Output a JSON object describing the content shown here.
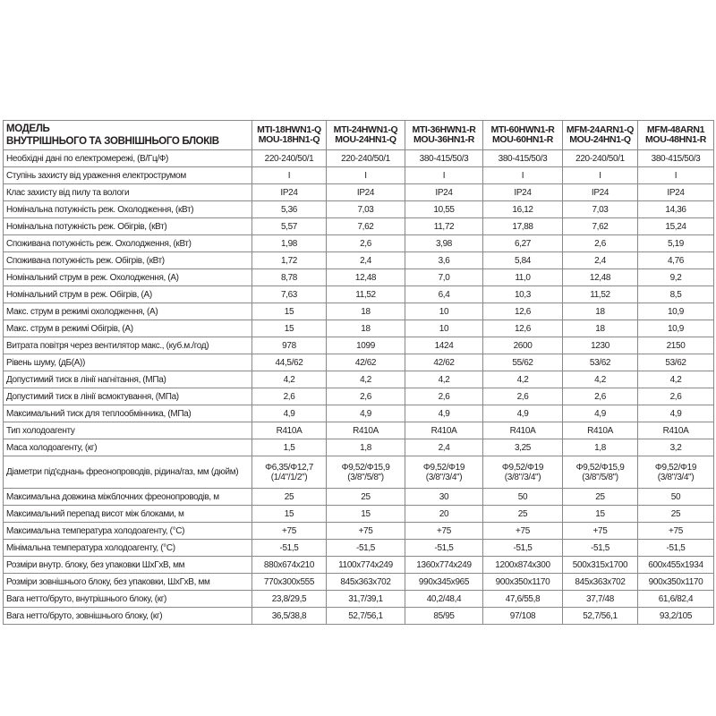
{
  "header": {
    "label_line1": "МОДЕЛЬ",
    "label_line2": "ВНУТРІШНЬОГО ТА ЗОВНІШНЬОГО БЛОКІВ",
    "models": [
      {
        "indoor": "MTI-18HWN1-Q",
        "outdoor": "MOU-18HN1-Q"
      },
      {
        "indoor": "MTI-24HWN1-Q",
        "outdoor": "MOU-24HN1-Q"
      },
      {
        "indoor": "MTI-36HWN1-R",
        "outdoor": "MOU-36HN1-R"
      },
      {
        "indoor": "MTI-60HWN1-R",
        "outdoor": "MOU-60HN1-R"
      },
      {
        "indoor": "MFM-24ARN1-Q",
        "outdoor": "MOU-24HN1-Q"
      },
      {
        "indoor": "MFM-48ARN1",
        "outdoor": "MOU-48HN1-R"
      }
    ]
  },
  "rows": [
    {
      "label": "Необхідні дані по електромережі, (В/Гц/Ф)",
      "values": [
        "220-240/50/1",
        "220-240/50/1",
        "380-415/50/3",
        "380-415/50/3",
        "220-240/50/1",
        "380-415/50/3"
      ]
    },
    {
      "label": "Ступінь захисту від ураження електрострумом",
      "values": [
        "I",
        "I",
        "I",
        "I",
        "I",
        "I"
      ]
    },
    {
      "label": "Клас захисту від пилу та вологи",
      "values": [
        "IP24",
        "IP24",
        "IP24",
        "IP24",
        "IP24",
        "IP24"
      ]
    },
    {
      "label": "Номінальна потужність реж. Охолодження, (кВт)",
      "values": [
        "5,36",
        "7,03",
        "10,55",
        "16,12",
        "7,03",
        "14,36"
      ]
    },
    {
      "label": "Номінальна потужність реж. Обігрів, (кВт)",
      "values": [
        "5,57",
        "7,62",
        "11,72",
        "17,88",
        "7,62",
        "15,24"
      ]
    },
    {
      "label": "Споживана потужність реж. Охолодження, (кВт)",
      "values": [
        "1,98",
        "2,6",
        "3,98",
        "6,27",
        "2,6",
        "5,19"
      ]
    },
    {
      "label": "Споживана потужність реж. Обігрів, (кВт)",
      "values": [
        "1,72",
        "2,4",
        "3,6",
        "5,84",
        "2,4",
        "4,76"
      ]
    },
    {
      "label": "Номінальний струм в реж. Охолодження, (А)",
      "values": [
        "8,78",
        "12,48",
        "7,0",
        "11,0",
        "12,48",
        "9,2"
      ]
    },
    {
      "label": "Номінальний струм в реж. Обігрів, (А)",
      "values": [
        "7,63",
        "11,52",
        "6,4",
        "10,3",
        "11,52",
        "8,5"
      ]
    },
    {
      "label": "Макс. струм в режимі охолодження, (А)",
      "values": [
        "15",
        "18",
        "10",
        "12,6",
        "18",
        "10,9"
      ]
    },
    {
      "label": "Макс. струм в режимі Обігрів, (А)",
      "values": [
        "15",
        "18",
        "10",
        "12,6",
        "18",
        "10,9"
      ]
    },
    {
      "label": "Витрата повітря через вентилятор макс., (куб.м./год)",
      "values": [
        "978",
        "1099",
        "1424",
        "2600",
        "1230",
        "2150"
      ]
    },
    {
      "label": "Рівень шуму, (дБ(А))",
      "values": [
        "44,5/62",
        "42/62",
        "42/62",
        "55/62",
        "53/62",
        "53/62"
      ]
    },
    {
      "label": "Допустимий тиск в лінії нагнітання, (МПа)",
      "values": [
        "4,2",
        "4,2",
        "4,2",
        "4,2",
        "4,2",
        "4,2"
      ]
    },
    {
      "label": "Допустимий тиск в лінії всмоктування, (МПа)",
      "values": [
        "2,6",
        "2,6",
        "2,6",
        "2,6",
        "2,6",
        "2,6"
      ]
    },
    {
      "label": "Максимальний тиск для теплообмінника, (МПа)",
      "values": [
        "4,9",
        "4,9",
        "4,9",
        "4,9",
        "4,9",
        "4,9"
      ]
    },
    {
      "label": "Тип холодоагенту",
      "values": [
        "R410A",
        "R410A",
        "R410A",
        "R410A",
        "R410A",
        "R410A"
      ]
    },
    {
      "label": "Маса холодоагенту, (кг)",
      "values": [
        "1,5",
        "1,8",
        "2,4",
        "3,25",
        "1,8",
        "3,2"
      ]
    },
    {
      "label": "Діаметри під'єднань фреонопроводів, рідина/газ, мм (дюйм)",
      "tall": true,
      "values": [
        "Φ6,35/Φ12,7\n(1/4\"/1/2\")",
        "Φ9,52/Φ15,9\n(3/8\"/5/8\")",
        "Φ9,52/Φ19\n(3/8\"/3/4\")",
        "Φ9,52/Φ19\n(3/8\"/3/4\")",
        "Φ9,52/Φ15,9\n(3/8\"/5/8\")",
        "Φ9,52/Φ19\n(3/8\"/3/4\")"
      ]
    },
    {
      "label": "Максимальна довжина міжблочних фреонопроводів, м",
      "values": [
        "25",
        "25",
        "30",
        "50",
        "25",
        "50"
      ]
    },
    {
      "label": "Максимальний перепад висот між блоками, м",
      "values": [
        "15",
        "15",
        "20",
        "25",
        "15",
        "25"
      ]
    },
    {
      "label": "Максимальна температура холодоагенту, (°С)",
      "values": [
        "+75",
        "+75",
        "+75",
        "+75",
        "+75",
        "+75"
      ]
    },
    {
      "label": "Мінімальна температура холодоагенту, (°С)",
      "values": [
        "-51,5",
        "-51,5",
        "-51,5",
        "-51,5",
        "-51,5",
        "-51,5"
      ]
    },
    {
      "label": "Розміри внутр. блоку, без упаковки ШхГхВ, мм",
      "values": [
        "880x674x210",
        "1100x774x249",
        "1360x774x249",
        "1200x874x300",
        "500x315x1700",
        "600x455x1934"
      ]
    },
    {
      "label": "Розміри зовнішнього блоку, без упаковки, ШхГхВ, мм",
      "values": [
        "770x300x555",
        "845x363x702",
        "990x345x965",
        "900x350x1170",
        "845x363x702",
        "900x350x1170"
      ]
    },
    {
      "label": "Вага нетто/бруто, внутрішнього блоку, (кг)",
      "values": [
        "23,8/29,5",
        "31,7/39,1",
        "40,2/48,4",
        "47,6/55,8",
        "37,7/48",
        "61,6/82,4"
      ]
    },
    {
      "label": "Вага нетто/бруто, зовнішнього блоку, (кг)",
      "values": [
        "36,5/38,8",
        "52,7/56,1",
        "85/95",
        "97/108",
        "52,7/56,1",
        "93,2/105"
      ]
    }
  ]
}
